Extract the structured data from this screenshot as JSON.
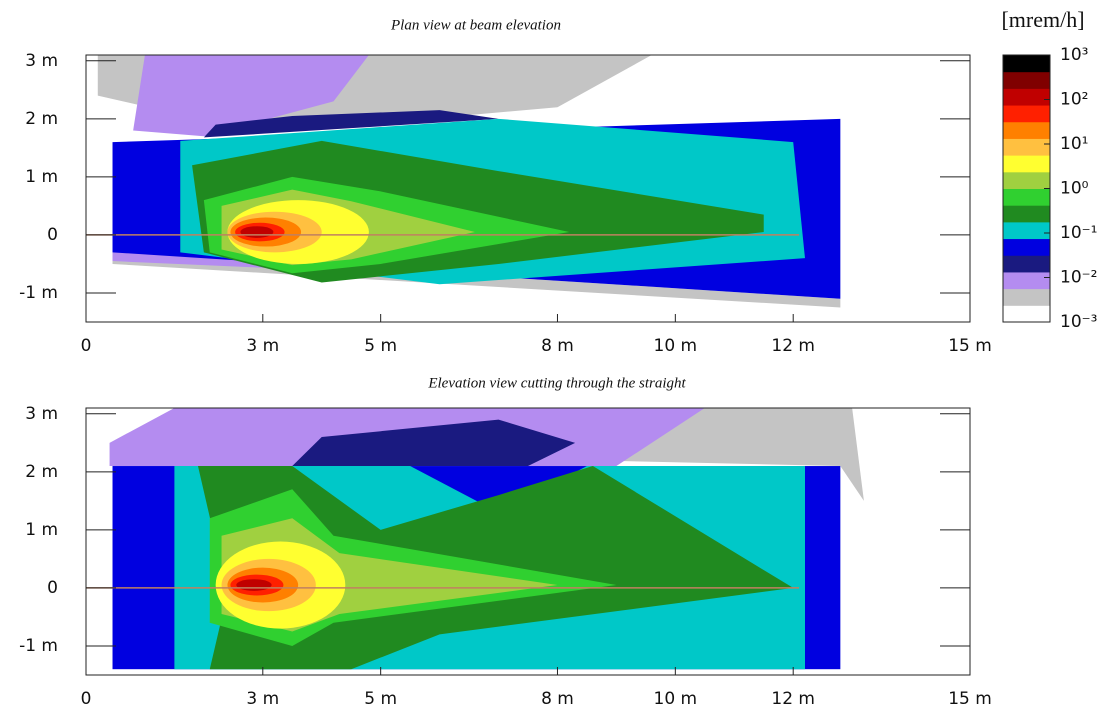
{
  "chart_data": [
    {
      "type": "heatmap",
      "title": "Plan view at beam elevation",
      "xlim": [
        0,
        15
      ],
      "ylim": [
        -1.5,
        3.1
      ],
      "xticks": [
        0,
        {
          "value": 3,
          "label": "3 m"
        },
        {
          "value": 5,
          "label": "5 m"
        },
        {
          "value": 8,
          "label": "8 m"
        },
        {
          "value": 10,
          "label": "10 m"
        },
        {
          "value": 12,
          "label": "12 m"
        },
        {
          "value": 15,
          "label": "15 m"
        }
      ],
      "yticks": [
        {
          "value": 3,
          "label": "3 m"
        },
        {
          "value": 2,
          "label": "2 m"
        },
        {
          "value": 1,
          "label": "1 m"
        },
        0,
        {
          "value": -1,
          "label": "-1 m"
        }
      ]
    },
    {
      "type": "heatmap",
      "title": "Elevation view cutting through the straight",
      "xlim": [
        0,
        15
      ],
      "ylim": [
        -1.5,
        3.1
      ],
      "xticks": [
        0,
        {
          "value": 3,
          "label": "3 m"
        },
        {
          "value": 5,
          "label": "5 m"
        },
        {
          "value": 8,
          "label": "8 m"
        },
        {
          "value": 10,
          "label": "10 m"
        },
        {
          "value": 12,
          "label": "12 m"
        },
        {
          "value": 15,
          "label": "15 m"
        }
      ],
      "yticks": [
        {
          "value": 3,
          "label": "3 m"
        },
        {
          "value": 2,
          "label": "2 m"
        },
        {
          "value": 1,
          "label": "1 m"
        },
        0,
        {
          "value": -1,
          "label": "-1 m"
        }
      ]
    }
  ],
  "colorbar": {
    "label": "[mrem/h]",
    "log": true,
    "lim": [
      0.001,
      1000
    ],
    "ticks": [
      {
        "value": 1000,
        "label": "10³"
      },
      {
        "value": 100,
        "label": "10²"
      },
      {
        "value": 10,
        "label": "10¹"
      },
      {
        "value": 1,
        "label": "10⁰"
      },
      {
        "value": 0.1,
        "label": "10⁻¹"
      },
      {
        "value": 0.01,
        "label": "10⁻²"
      },
      {
        "value": 0.001,
        "label": "10⁻³"
      }
    ],
    "colors": [
      "#ffffff",
      "#c4c4c4",
      "#b48cf0",
      "#1a1a80",
      "#0000e0",
      "#00c8c8",
      "#208a20",
      "#30d030",
      "#a0d040",
      "#ffff30",
      "#ffc040",
      "#ff8000",
      "#ff2000",
      "#c00000",
      "#800000",
      "#000000"
    ]
  }
}
